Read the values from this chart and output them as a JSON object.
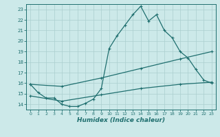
{
  "title": "",
  "xlabel": "Humidex (Indice chaleur)",
  "xlim": [
    -0.5,
    23.5
  ],
  "ylim": [
    13.5,
    23.5
  ],
  "yticks": [
    14,
    15,
    16,
    17,
    18,
    19,
    20,
    21,
    22,
    23
  ],
  "xticks": [
    0,
    1,
    2,
    3,
    4,
    5,
    6,
    7,
    8,
    9,
    10,
    11,
    12,
    13,
    14,
    15,
    16,
    17,
    18,
    19,
    20,
    21,
    22,
    23
  ],
  "bg_color": "#cce9e9",
  "line_color": "#1e6e6e",
  "grid_color": "#aacece",
  "curve1_x": [
    0,
    1,
    2,
    3,
    4,
    5,
    6,
    7,
    8,
    9,
    10,
    11,
    12,
    13,
    14,
    15,
    16,
    17,
    18,
    19,
    20,
    21,
    22,
    23
  ],
  "curve1_y": [
    15.9,
    15.1,
    14.6,
    14.6,
    14.0,
    13.8,
    13.8,
    14.1,
    14.5,
    15.5,
    19.3,
    20.5,
    21.5,
    22.5,
    23.3,
    21.9,
    22.5,
    21.0,
    20.3,
    19.0,
    18.4,
    17.3,
    16.3,
    16.0
  ],
  "curve2_x": [
    0,
    4,
    9,
    14,
    19,
    23
  ],
  "curve2_y": [
    15.9,
    15.7,
    16.5,
    17.4,
    18.3,
    19.0
  ],
  "curve3_x": [
    0,
    4,
    9,
    14,
    19,
    23
  ],
  "curve3_y": [
    14.8,
    14.3,
    14.9,
    15.5,
    15.9,
    16.1
  ]
}
